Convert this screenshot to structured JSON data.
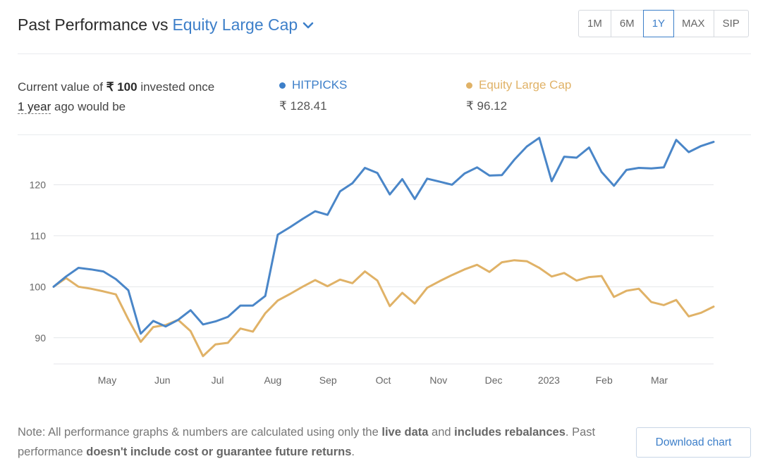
{
  "header": {
    "title_prefix": "Past Performance vs",
    "benchmark": "Equity Large Cap",
    "periods": [
      "1M",
      "6M",
      "1Y",
      "MAX",
      "SIP"
    ],
    "active_period": "1Y"
  },
  "summary": {
    "line1_prefix": "Current value of",
    "amount": "₹ 100",
    "line1_suffix": "invested once",
    "duration": "1 year",
    "line2_suffix": "ago would be"
  },
  "legend": [
    {
      "name": "HITPICKS",
      "value": "₹ 128.41",
      "color": "#4a86c8"
    },
    {
      "name": "Equity Large Cap",
      "value": "₹ 96.12",
      "color": "#e0b267"
    }
  ],
  "chart_data": {
    "type": "line",
    "title": "",
    "xlabel": "",
    "ylabel": "",
    "ylim": [
      85,
      130
    ],
    "yticks": [
      90,
      100,
      110,
      120
    ],
    "grid": true,
    "x_tick_labels": [
      "May",
      "Jun",
      "Jul",
      "Aug",
      "Sep",
      "Oct",
      "Nov",
      "Dec",
      "2023",
      "Feb",
      "Mar"
    ],
    "series": [
      {
        "name": "HITPICKS",
        "color": "#4a86c8",
        "values": [
          100,
          102,
          103.7,
          103.4,
          103,
          101.5,
          99.3,
          90.8,
          93.3,
          92.2,
          93.5,
          95.4,
          92.6,
          93.2,
          94.1,
          96.3,
          96.3,
          98.2,
          110.2,
          111.7,
          113.3,
          114.8,
          114.1,
          118.7,
          120.3,
          123.3,
          122.3,
          118.1,
          121.1,
          117.2,
          121.2,
          120.6,
          120,
          122.2,
          123.4,
          121.8,
          121.9,
          124.9,
          127.5,
          129.2,
          120.7,
          125.5,
          125.3,
          127.3,
          122.5,
          119.8,
          122.9,
          123.3,
          123.2,
          123.4,
          128.8,
          126.4,
          127.6,
          128.4
        ]
      },
      {
        "name": "Equity Large Cap",
        "color": "#e0b267",
        "values": [
          100,
          101.7,
          100,
          99.6,
          99.1,
          98.5,
          93.6,
          89.2,
          92.1,
          92.5,
          93.5,
          91.3,
          86.4,
          88.7,
          89,
          91.8,
          91.2,
          94.8,
          97.3,
          98.6,
          100,
          101.3,
          100.1,
          101.4,
          100.7,
          103,
          101.2,
          96.2,
          98.8,
          96.7,
          99.8,
          101.1,
          102.3,
          103.4,
          104.3,
          102.9,
          104.8,
          105.2,
          105,
          103.7,
          102,
          102.7,
          101.2,
          101.9,
          102.1,
          98,
          99.2,
          99.6,
          97,
          96.4,
          97.4,
          94.2,
          94.9,
          96.1
        ]
      }
    ]
  },
  "footer": {
    "note_prefix": "Note: All performance graphs & numbers are calculated using only the",
    "note_bold1": "live data",
    "note_and": "and",
    "note_bold2": "includes rebalances",
    "note_mid": ". Past performance",
    "note_bold3": "doesn't include cost or guarantee future returns",
    "note_end": ".",
    "download_label": "Download chart"
  }
}
